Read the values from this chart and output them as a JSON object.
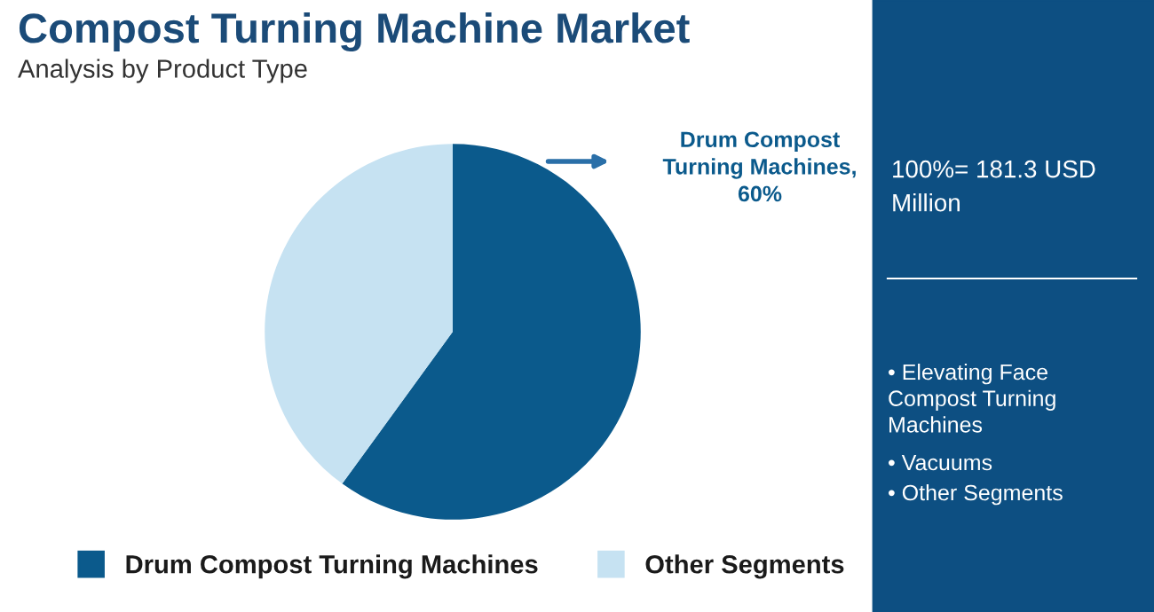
{
  "chart_data": {
    "type": "pie",
    "title": "Compost Turning Machine Market",
    "subtitle": "Analysis by Product Type",
    "categories": [
      "Drum Compost Turning Machines",
      "Other Segments"
    ],
    "values": [
      60,
      40
    ],
    "colors": [
      "#0b5a8c",
      "#c6e2f2"
    ],
    "legend": "bottom",
    "annotations": [
      "Drum Compost Turning Machines, 60%",
      "100%= 181.3 USD Million",
      "• Elevating Face Compost Turning Machines",
      "• Vacuums",
      "• Other Segments"
    ]
  }
}
